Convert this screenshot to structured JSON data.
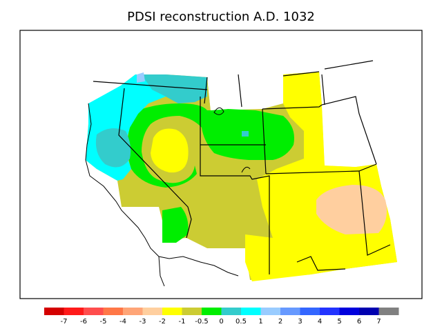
{
  "title": "PDSI reconstruction A.D. 1032",
  "legend": {
    "colors": [
      "#d40000",
      "#ff1a1a",
      "#ff4d4d",
      "#ff7747",
      "#ffa577",
      "#ffcf9f",
      "#ffff00",
      "#cccc33",
      "#00ee00",
      "#33cccc",
      "#00ffff",
      "#99ccff",
      "#6699ff",
      "#3366ff",
      "#2233ff",
      "#0000dd",
      "#0000b0",
      "#808080"
    ],
    "ticks": [
      "-7",
      "-6",
      "-5",
      "-4",
      "-3",
      "-2",
      "-1",
      "-0.5",
      "0",
      "0.5",
      "1",
      "2",
      "3",
      "4",
      "5",
      "6",
      "7"
    ]
  },
  "map": {
    "land_color": "#ffffff",
    "border_color": "#000000",
    "zones": [
      {
        "name": "pacific-northwest-wet",
        "color": "#00ffff"
      },
      {
        "name": "idaho-wet",
        "color": "#33cccc"
      },
      {
        "name": "great-basin-normal",
        "color": "#00ee00"
      },
      {
        "name": "colorado-plateau-dry",
        "color": "#cccc33"
      },
      {
        "name": "southwest-dry",
        "color": "#ffff00"
      },
      {
        "name": "southern-plains-very-dry",
        "color": "#ffcf9f"
      }
    ]
  }
}
